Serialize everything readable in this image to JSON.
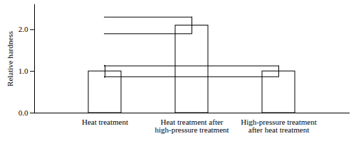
{
  "chart_data": {
    "type": "bar",
    "y_label": "Relative hardness",
    "categories": [
      "Heat treatment",
      "Heat treatment after\nhigh-pressure treatment",
      "High-pressure treatment\nafter heat treatment"
    ],
    "values": [
      1.0,
      2.1,
      1.0
    ],
    "errors": [
      0.14,
      0.2,
      0.13
    ],
    "color": "#ffffff",
    "ylim": [
      0,
      2.6
    ],
    "yticks": [
      {
        "value": 0,
        "label": "0.0"
      },
      {
        "value": 1,
        "label": "1.0"
      },
      {
        "value": 2,
        "label": "2.0"
      }
    ],
    "grid": false
  }
}
